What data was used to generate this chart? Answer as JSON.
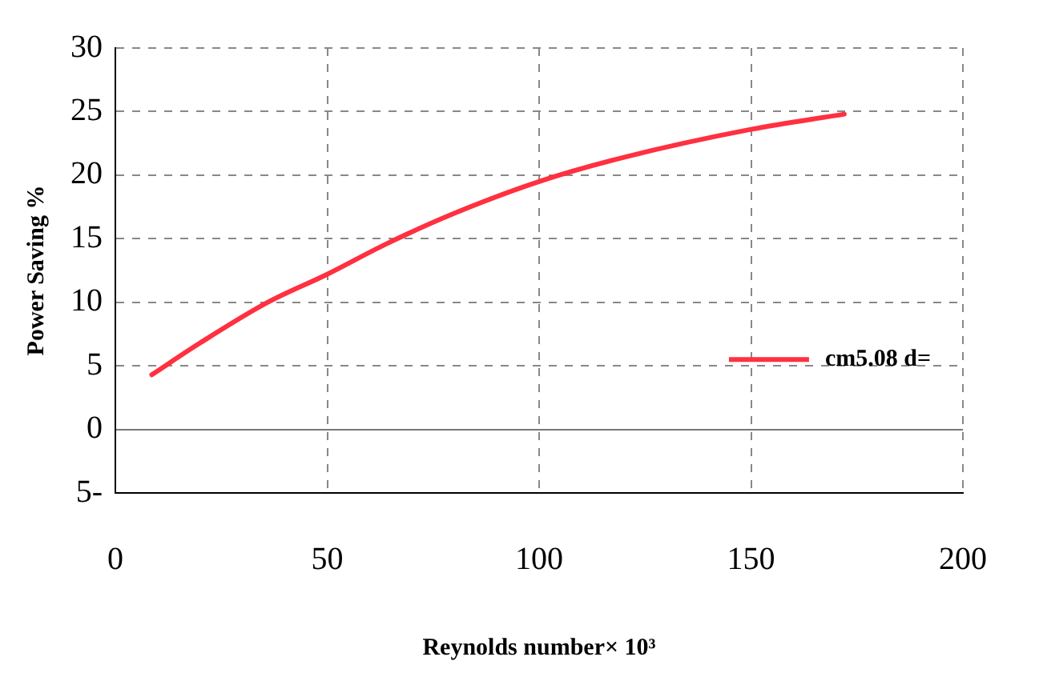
{
  "chart_data": {
    "type": "line",
    "xlabel": "Reynolds number× 10³",
    "ylabel": "Power Saving %",
    "x": [
      8.6,
      20,
      36,
      50,
      64,
      80,
      100,
      120,
      150,
      172
    ],
    "series": [
      {
        "name": "cm5.08 d=",
        "color": "#ff3040",
        "values": [
          4.3,
          6.8,
          10,
          12.2,
          14.6,
          17,
          19.5,
          21.4,
          23.6,
          24.8
        ]
      }
    ],
    "xlim": [
      0,
      200
    ],
    "xticks": [
      0,
      50,
      100,
      150,
      200
    ],
    "ylim": [
      -5,
      30
    ],
    "yticks": [
      {
        "value": -5,
        "label": "5-"
      },
      0,
      5,
      10,
      15,
      20,
      25,
      30
    ],
    "grid": true,
    "legend": "right",
    "marker": "none",
    "line_style": "solid"
  }
}
